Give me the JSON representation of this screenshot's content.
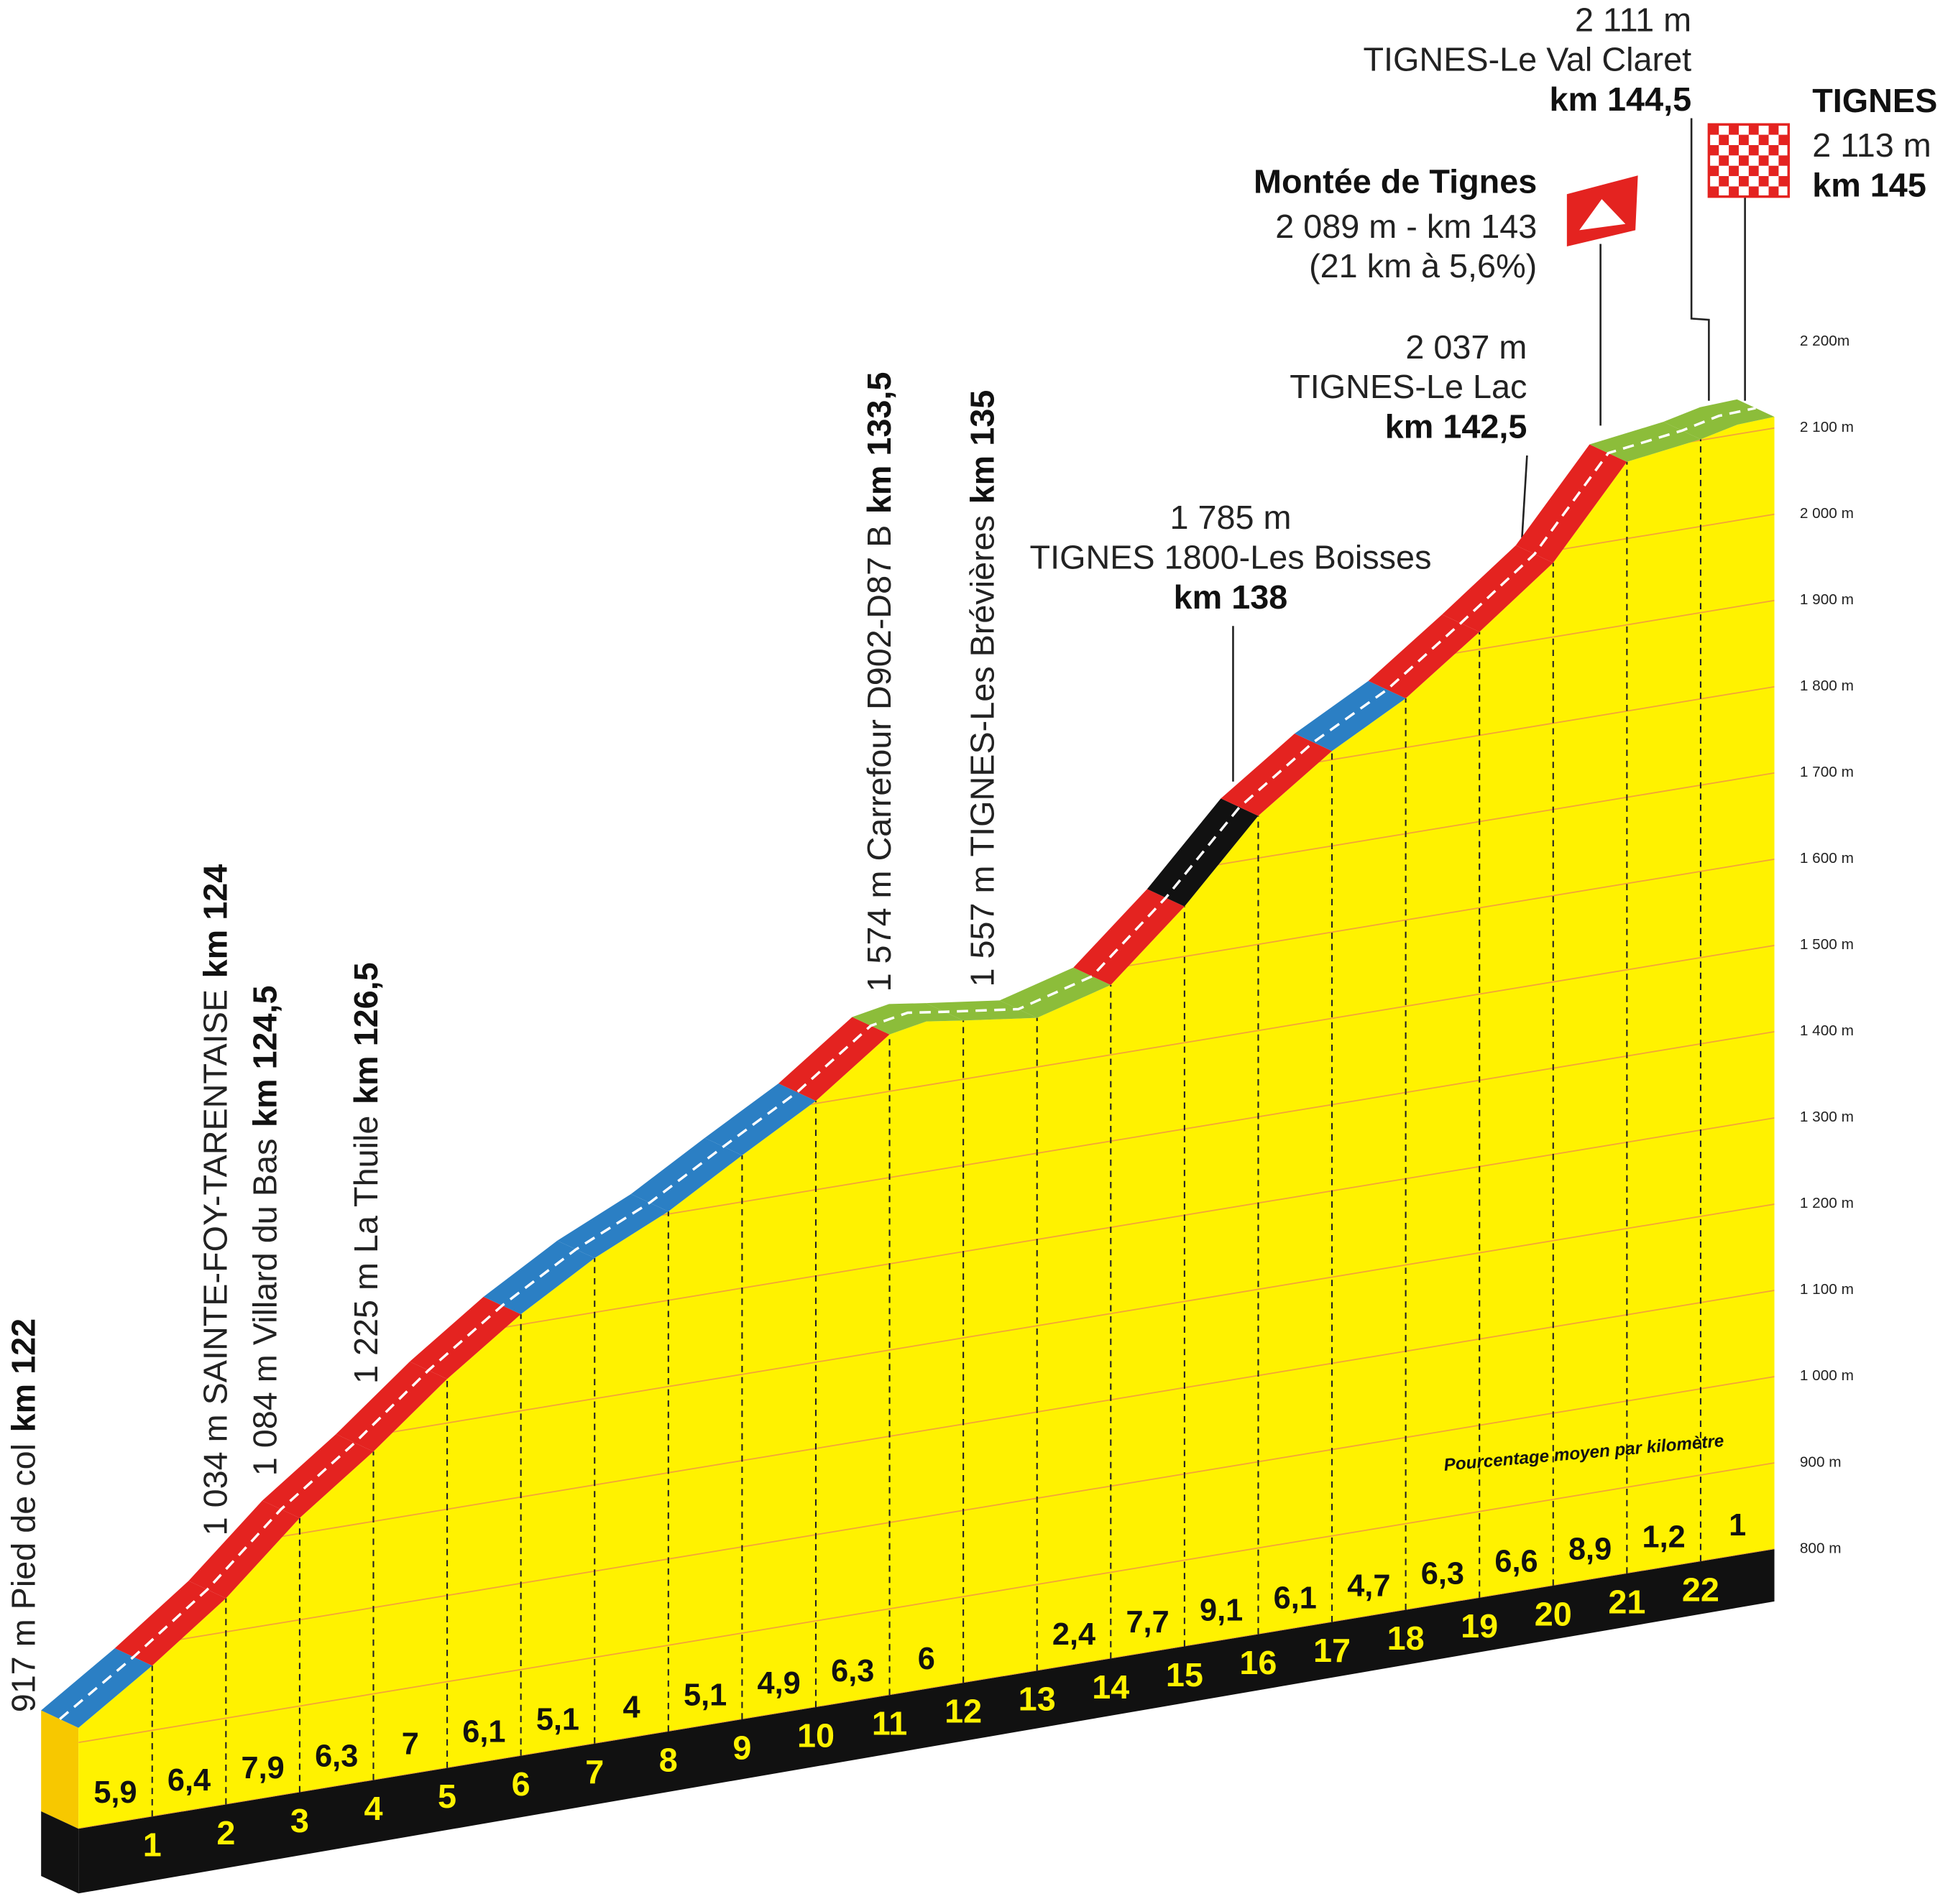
{
  "chart_data": {
    "type": "area",
    "profile": {
      "x": [
        0,
        1,
        2,
        3,
        4,
        5,
        6,
        7,
        8,
        9,
        10,
        11,
        11.5,
        12,
        13,
        14,
        15,
        16,
        17,
        18,
        19,
        20,
        21,
        22,
        22.5,
        23
      ],
      "values": [
        917,
        975,
        1039,
        1118,
        1181,
        1251,
        1312,
        1363,
        1403,
        1454,
        1503,
        1566,
        1574,
        1568,
        1557,
        1581,
        1658,
        1749,
        1810,
        1857,
        1920,
        1986,
        2089,
        2101,
        2111,
        2113
      ]
    },
    "segments": {
      "values": [
        5.9,
        6.4,
        7.9,
        6.3,
        7,
        6.1,
        5.1,
        4,
        5.1,
        4.9,
        6.3,
        6,
        null,
        2.4,
        7.7,
        9.1,
        6.1,
        4.7,
        6.3,
        6.6,
        8.9,
        1.2,
        1
      ],
      "value_labels": [
        "5,9",
        "6,4",
        "7,9",
        "6,3",
        "7",
        "6,1",
        "5,1",
        "4",
        "5,1",
        "4,9",
        "6,3",
        "6",
        null,
        "2,4",
        "7,7",
        "9,1",
        "6,1",
        "4,7",
        "6,3",
        "6,6",
        "8,9",
        "1,2",
        "1"
      ],
      "colors": [
        "#2b7fc4",
        "#e42320",
        "#e42320",
        "#e42320",
        "#e42320",
        "#e42320",
        "#2b7fc4",
        "#2b7fc4",
        "#2b7fc4",
        "#2b7fc4",
        "#e42320",
        "#8cbd3a",
        "#8cbd3a",
        "#8cbd3a",
        "#e42320",
        "#111111",
        "#e42320",
        "#2b7fc4",
        "#e42320",
        "#e42320",
        "#e42320",
        "#8cbd3a",
        "#8cbd3a"
      ]
    },
    "xlim": [
      0,
      23
    ],
    "xticks": [
      1,
      2,
      3,
      4,
      5,
      6,
      7,
      8,
      9,
      10,
      11,
      12,
      13,
      14,
      15,
      16,
      17,
      18,
      19,
      20,
      21,
      22
    ],
    "ylim": [
      800,
      2200
    ],
    "yticks": [
      {
        "value": 800,
        "label": "800 m"
      },
      {
        "value": 900,
        "label": "900 m"
      },
      {
        "value": 1000,
        "label": "1 000 m"
      },
      {
        "value": 1100,
        "label": "1 100 m"
      },
      {
        "value": 1200,
        "label": "1 200 m"
      },
      {
        "value": 1300,
        "label": "1 300 m"
      },
      {
        "value": 1400,
        "label": "1 400 m"
      },
      {
        "value": 1500,
        "label": "1 500 m"
      },
      {
        "value": 1600,
        "label": "1 600 m"
      },
      {
        "value": 1700,
        "label": "1 700 m"
      },
      {
        "value": 1800,
        "label": "1 800 m"
      },
      {
        "value": 1900,
        "label": "1 900 m"
      },
      {
        "value": 2000,
        "label": "2 000 m"
      },
      {
        "value": 2100,
        "label": "2 100 m"
      },
      {
        "value": 2200,
        "label": "2 200m"
      }
    ],
    "grid": true,
    "color": "#fff200",
    "note": "Pourcentage moyen par kilomètre",
    "annotations": [
      {
        "label": "917 m  Pied de col",
        "km": "km 122"
      },
      {
        "label": "1 034 m SAINTE-FOY-TARENTAISE",
        "km": "km 124"
      },
      {
        "label": "1 084 m Villard du Bas",
        "km": "km 124,5"
      },
      {
        "label": "1 225 m La Thuile",
        "km": "km 126,5"
      },
      {
        "label": "1 574 m Carrefour D902-D87 B",
        "km": "km 133,5"
      },
      {
        "label": "1 557 m TIGNES-Les Brévières",
        "km": "km 135"
      },
      {
        "lines": [
          "1 785 m",
          "TIGNES 1800-Les Boisses"
        ],
        "km": "km 138"
      },
      {
        "lines": [
          "2 037 m",
          "TIGNES-Le Lac"
        ],
        "km": "km 142,5"
      },
      {
        "title": "Montée de Tignes",
        "lines": [
          "2 089 m - km 143",
          "(21 km à 5,6%)"
        ]
      },
      {
        "lines": [
          "2 111 m",
          "TIGNES-Le Val Claret"
        ],
        "km": "km 144,5"
      },
      {
        "title": "TIGNES",
        "lines": [
          "2 113 m"
        ],
        "km": "km 145"
      }
    ]
  }
}
